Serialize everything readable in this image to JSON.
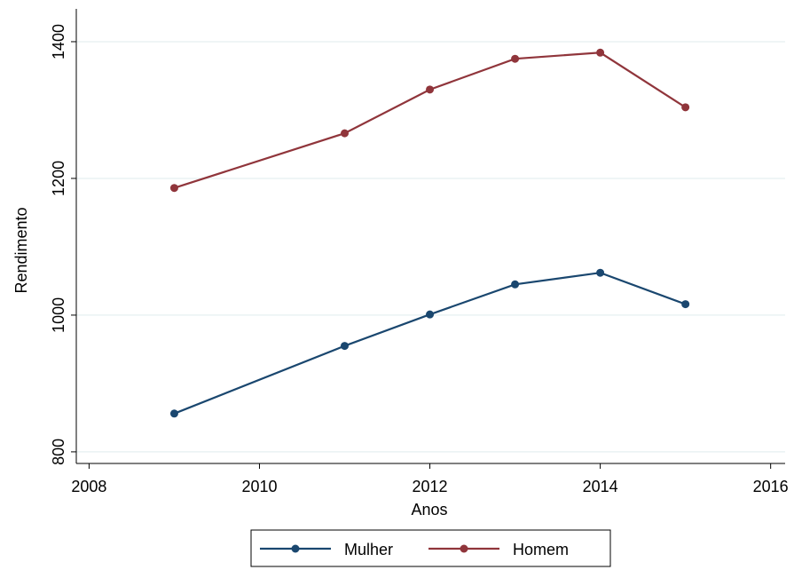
{
  "chart_data": {
    "type": "line",
    "x_label": "Anos",
    "y_label": "Rendimento",
    "x": [
      2009,
      2011,
      2012,
      2013,
      2014,
      2015
    ],
    "series": [
      {
        "name": "Mulher",
        "color": "#1a476f",
        "values": [
          856,
          955,
          1001,
          1045,
          1062,
          1016
        ]
      },
      {
        "name": "Homem",
        "color": "#90353b",
        "values": [
          1186,
          1266,
          1330,
          1375,
          1384,
          1304
        ]
      }
    ],
    "xlim": [
      2007.85,
      2016.17
    ],
    "xticks": [
      2008,
      2010,
      2012,
      2014,
      2016
    ],
    "ylim": [
      783,
      1448
    ],
    "yticks": [
      800,
      1000,
      1200,
      1400
    ],
    "grid": true,
    "legend": "bottom"
  }
}
